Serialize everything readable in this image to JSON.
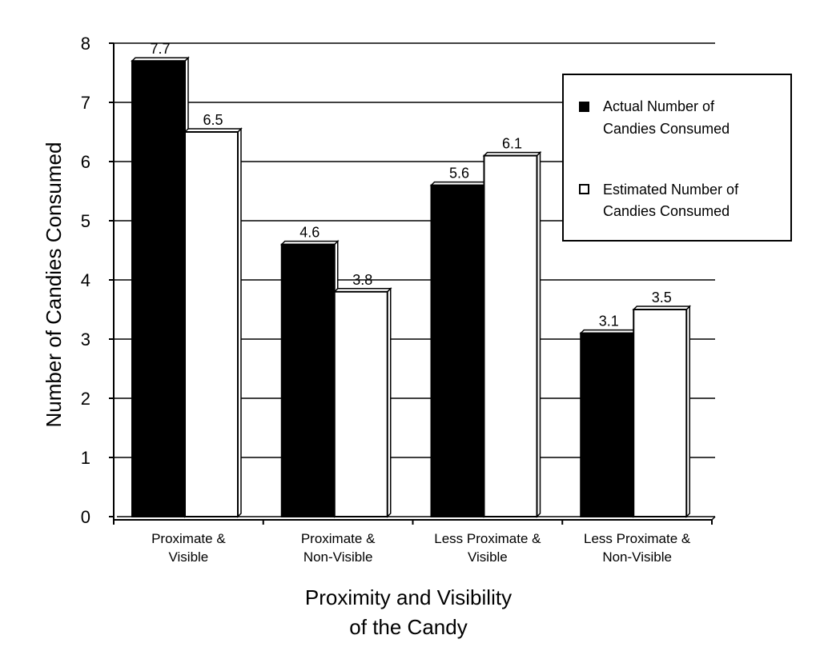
{
  "chart_data": {
    "type": "bar",
    "categories": [
      [
        "Proximate &",
        "Visible"
      ],
      [
        "Proximate &",
        "Non-Visible"
      ],
      [
        "Less Proximate &",
        "Visible"
      ],
      [
        "Less Proximate &",
        "Non-Visible"
      ]
    ],
    "series": [
      {
        "name": [
          "Actual Number of",
          "Candies Consumed"
        ],
        "values": [
          7.7,
          4.6,
          5.6,
          3.1
        ],
        "value_labels": [
          "7.7",
          "4.6",
          "5.6",
          "3.1"
        ],
        "color": "#000000"
      },
      {
        "name": [
          "Estimated Number of",
          "Candies Consumed"
        ],
        "values": [
          6.5,
          3.8,
          6.1,
          3.5
        ],
        "value_labels": [
          "6.5",
          "3.8",
          "6.1",
          "3.5"
        ],
        "color": "#ffffff"
      }
    ],
    "ylabel": "Number of Candies Consumed",
    "xlabel": [
      "Proximity and Visibility",
      "of the Candy"
    ],
    "ylim": [
      0,
      8
    ],
    "yticks": [
      "0",
      "1",
      "2",
      "3",
      "4",
      "5",
      "6",
      "7",
      "8"
    ],
    "grid": true,
    "legend_position": "top-right"
  }
}
